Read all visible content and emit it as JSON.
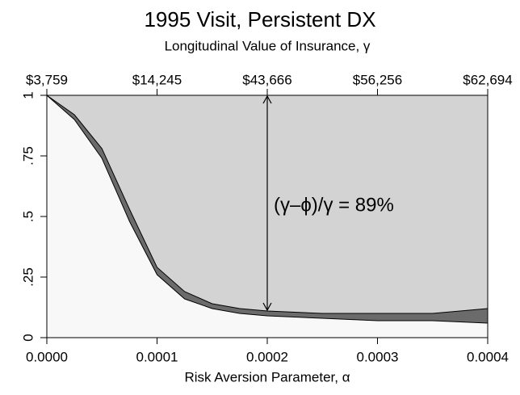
{
  "chart_data": {
    "type": "area",
    "title": "1995 Visit, Persistent DX",
    "xlabel": "Risk Aversion Parameter, α",
    "x2label": "Longitudinal Value of Insurance, γ",
    "annotation": "(γ–ϕ)/γ = 89%",
    "x": [
      0,
      2.5e-05,
      5e-05,
      7.5e-05,
      0.0001,
      0.000125,
      0.00015,
      0.000175,
      0.0002,
      0.00025,
      0.0003,
      0.00035,
      0.0004
    ],
    "series": [
      {
        "color": "#d3d3d3",
        "values": [
          1,
          0.92,
          0.78,
          0.53,
          0.29,
          0.19,
          0.14,
          0.12,
          0.11,
          0.1,
          0.1,
          0.1,
          0.12
        ]
      },
      {
        "color": "#6b6b6b",
        "values": [
          1,
          0.9,
          0.74,
          0.48,
          0.26,
          0.16,
          0.12,
          0.1,
          0.09,
          0.08,
          0.07,
          0.07,
          0.06
        ]
      }
    ],
    "background": "#f8f8f8",
    "xlim": [
      0,
      0.0004
    ],
    "xticks": [
      {
        "value": 0,
        "label": "0.0000"
      },
      0.0001,
      0.0002,
      0.0003,
      0.0004
    ],
    "x2ticks": [
      {
        "value": 0,
        "label": "$3,759"
      },
      {
        "value": 0.0001,
        "label": "$14,245"
      },
      {
        "value": 0.0002,
        "label": "$43,666"
      },
      {
        "value": 0.0003,
        "label": "$56,256"
      },
      {
        "value": 0.0004,
        "label": "$62,694"
      }
    ],
    "ylim": [
      0,
      1
    ],
    "yticks": [
      0,
      {
        "value": 0.25,
        "label": ".25"
      },
      {
        "value": 0.5,
        "label": ".5"
      },
      {
        "value": 0.75,
        "label": ".75"
      },
      1
    ]
  }
}
